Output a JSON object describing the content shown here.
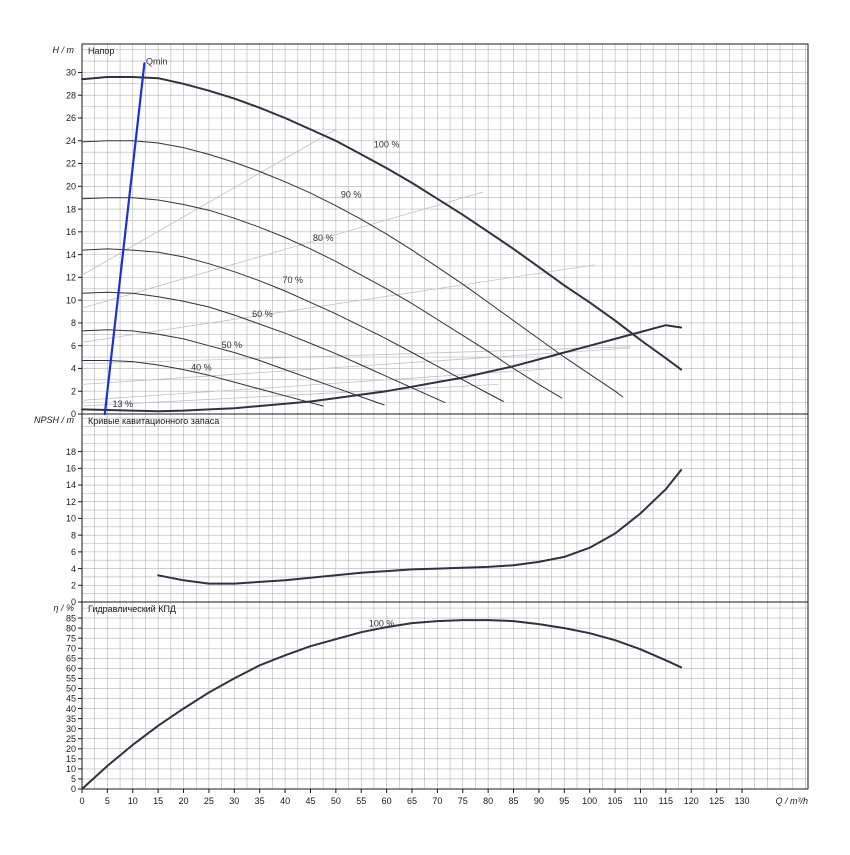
{
  "colors": {
    "grid": "#b4b4b4",
    "curve": "#2d3340",
    "qmin": "#1f2fd6",
    "eff_iso": "#c2c2c2",
    "frame": "#1a1a1a"
  },
  "x_axis": {
    "label": "Q / m³/h",
    "range": [
      0,
      143
    ],
    "grid_step": 2.5,
    "ticks": [
      0,
      5,
      10,
      15,
      20,
      25,
      30,
      35,
      40,
      45,
      50,
      55,
      60,
      65,
      70,
      75,
      80,
      85,
      90,
      95,
      100,
      105,
      110,
      115,
      120,
      125,
      130
    ]
  },
  "panels": [
    {
      "id": "head",
      "title": "Напор",
      "ylabel": "H / m",
      "ylim": [
        0,
        32.5
      ],
      "grid_step": 1,
      "ticks": [
        0,
        2,
        4,
        6,
        8,
        10,
        12,
        14,
        16,
        18,
        20,
        22,
        24,
        26,
        28,
        30
      ]
    },
    {
      "id": "npsh",
      "title": "Кривые кавитационного запаса",
      "ylabel": "NPSH / m",
      "ylim": [
        0,
        22.5
      ],
      "grid_step": 1,
      "ticks": [
        0,
        2,
        4,
        6,
        8,
        10,
        12,
        14,
        16,
        18
      ]
    },
    {
      "id": "eff",
      "title": "Гидравлический КПД",
      "ylabel": "η / %",
      "ylim": [
        0,
        93
      ],
      "grid_step": 5,
      "ticks": [
        0,
        5,
        10,
        15,
        20,
        25,
        30,
        35,
        40,
        45,
        50,
        55,
        60,
        65,
        70,
        75,
        80,
        85
      ]
    }
  ],
  "chart_data": [
    {
      "type": "line",
      "panel": "head",
      "title": "Напор",
      "ylabel": "H / m",
      "xlabel": "Q / m³/h",
      "xlim": [
        0,
        143
      ],
      "ylim": [
        0,
        32.5
      ],
      "grid": true,
      "series": [
        {
          "name": "100 %",
          "style": "main",
          "points": [
            [
              0,
              29.4
            ],
            [
              5,
              29.6
            ],
            [
              10,
              29.6
            ],
            [
              15,
              29.5
            ],
            [
              20,
              29.0
            ],
            [
              25,
              28.4
            ],
            [
              30,
              27.7
            ],
            [
              35,
              26.9
            ],
            [
              40,
              26.0
            ],
            [
              45,
              25.0
            ],
            [
              50,
              24.0
            ],
            [
              55,
              22.8
            ],
            [
              60,
              21.6
            ],
            [
              65,
              20.3
            ],
            [
              70,
              18.9
            ],
            [
              75,
              17.5
            ],
            [
              80,
              16.0
            ],
            [
              85,
              14.5
            ],
            [
              90,
              12.9
            ],
            [
              95,
              11.3
            ],
            [
              100,
              9.8
            ],
            [
              105,
              8.2
            ],
            [
              110,
              6.5
            ],
            [
              115,
              4.9
            ],
            [
              118,
              3.9
            ]
          ]
        },
        {
          "name": "90 %",
          "style": "thin",
          "points": [
            [
              0,
              23.9
            ],
            [
              5,
              24.0
            ],
            [
              10,
              24.0
            ],
            [
              15,
              23.8
            ],
            [
              20,
              23.4
            ],
            [
              25,
              22.8
            ],
            [
              30,
              22.1
            ],
            [
              35,
              21.3
            ],
            [
              40,
              20.4
            ],
            [
              45,
              19.4
            ],
            [
              50,
              18.3
            ],
            [
              55,
              17.1
            ],
            [
              60,
              15.8
            ],
            [
              65,
              14.4
            ],
            [
              70,
              12.9
            ],
            [
              75,
              11.4
            ],
            [
              80,
              9.8
            ],
            [
              85,
              8.2
            ],
            [
              90,
              6.6
            ],
            [
              95,
              5.0
            ],
            [
              100,
              3.5
            ],
            [
              105,
              2.0
            ],
            [
              106.5,
              1.5
            ]
          ]
        },
        {
          "name": "80 %",
          "style": "thin",
          "points": [
            [
              0,
              18.9
            ],
            [
              5,
              19.0
            ],
            [
              10,
              19.0
            ],
            [
              15,
              18.8
            ],
            [
              20,
              18.4
            ],
            [
              25,
              17.9
            ],
            [
              30,
              17.2
            ],
            [
              35,
              16.4
            ],
            [
              40,
              15.5
            ],
            [
              45,
              14.5
            ],
            [
              50,
              13.4
            ],
            [
              55,
              12.2
            ],
            [
              60,
              11.0
            ],
            [
              65,
              9.7
            ],
            [
              70,
              8.3
            ],
            [
              75,
              6.9
            ],
            [
              80,
              5.5
            ],
            [
              85,
              4.0
            ],
            [
              90,
              2.6
            ],
            [
              94.5,
              1.4
            ]
          ]
        },
        {
          "name": "70 %",
          "style": "thin",
          "points": [
            [
              0,
              14.4
            ],
            [
              5,
              14.5
            ],
            [
              10,
              14.4
            ],
            [
              15,
              14.2
            ],
            [
              20,
              13.8
            ],
            [
              25,
              13.2
            ],
            [
              30,
              12.5
            ],
            [
              35,
              11.7
            ],
            [
              40,
              10.8
            ],
            [
              45,
              9.8
            ],
            [
              50,
              8.8
            ],
            [
              55,
              7.7
            ],
            [
              60,
              6.6
            ],
            [
              65,
              5.4
            ],
            [
              70,
              4.2
            ],
            [
              75,
              3.0
            ],
            [
              80,
              1.8
            ],
            [
              83,
              1.1
            ]
          ]
        },
        {
          "name": "60 %",
          "style": "thin",
          "points": [
            [
              0,
              10.6
            ],
            [
              5,
              10.7
            ],
            [
              10,
              10.6
            ],
            [
              15,
              10.3
            ],
            [
              20,
              9.9
            ],
            [
              25,
              9.4
            ],
            [
              30,
              8.7
            ],
            [
              35,
              7.9
            ],
            [
              40,
              7.1
            ],
            [
              45,
              6.2
            ],
            [
              50,
              5.3
            ],
            [
              55,
              4.3
            ],
            [
              60,
              3.3
            ],
            [
              65,
              2.3
            ],
            [
              70,
              1.3
            ],
            [
              71.5,
              1.0
            ]
          ]
        },
        {
          "name": "50 %",
          "style": "thin",
          "points": [
            [
              0,
              7.3
            ],
            [
              5,
              7.4
            ],
            [
              10,
              7.3
            ],
            [
              15,
              7.0
            ],
            [
              20,
              6.6
            ],
            [
              25,
              6.0
            ],
            [
              30,
              5.4
            ],
            [
              35,
              4.7
            ],
            [
              40,
              3.9
            ],
            [
              45,
              3.1
            ],
            [
              50,
              2.3
            ],
            [
              55,
              1.5
            ],
            [
              59.5,
              0.8
            ]
          ]
        },
        {
          "name": "40 %",
          "style": "thin",
          "points": [
            [
              0,
              4.7
            ],
            [
              5,
              4.7
            ],
            [
              10,
              4.6
            ],
            [
              15,
              4.3
            ],
            [
              20,
              3.9
            ],
            [
              25,
              3.4
            ],
            [
              30,
              2.8
            ],
            [
              35,
              2.2
            ],
            [
              40,
              1.6
            ],
            [
              45,
              1.0
            ],
            [
              47.5,
              0.7
            ]
          ]
        },
        {
          "name": "13 %",
          "style": "main",
          "points": [
            [
              0,
              0.4
            ],
            [
              5,
              0.35
            ],
            [
              10,
              0.3
            ],
            [
              15,
              0.25
            ],
            [
              20,
              0.3
            ],
            [
              25,
              0.4
            ],
            [
              30,
              0.5
            ],
            [
              35,
              0.7
            ],
            [
              40,
              0.9
            ],
            [
              45,
              1.1
            ],
            [
              50,
              1.4
            ],
            [
              55,
              1.7
            ],
            [
              60,
              2.0
            ],
            [
              65,
              2.4
            ],
            [
              70,
              2.8
            ],
            [
              75,
              3.2
            ],
            [
              80,
              3.7
            ],
            [
              85,
              4.2
            ],
            [
              90,
              4.8
            ],
            [
              95,
              5.4
            ],
            [
              100,
              6.0
            ],
            [
              105,
              6.6
            ],
            [
              110,
              7.2
            ],
            [
              115,
              7.8
            ],
            [
              118,
              7.6
            ]
          ]
        },
        {
          "name": "Qmin",
          "style": "qmin",
          "points": [
            [
              4.5,
              0
            ],
            [
              12.3,
              30.8
            ]
          ]
        }
      ],
      "efficiency_isolines": [
        {
          "points": [
            [
              0,
              12.2
            ],
            [
              50,
              25.0
            ]
          ]
        },
        {
          "points": [
            [
              0,
              9.3
            ],
            [
              79,
              19.5
            ]
          ]
        },
        {
          "points": [
            [
              0,
              6.3
            ],
            [
              101,
              13.1
            ]
          ]
        },
        {
          "points": [
            [
              0,
              4.4
            ],
            [
              108,
              5.9
            ]
          ]
        },
        {
          "points": [
            [
              0,
              2.6
            ],
            [
              108,
              5.8
            ]
          ]
        },
        {
          "points": [
            [
              0,
              1.2
            ],
            [
              93,
              4.0
            ]
          ]
        },
        {
          "points": [
            [
              0,
              0.7
            ],
            [
              82,
              2.6
            ]
          ]
        }
      ],
      "annotations": [
        {
          "text": "Qmin",
          "x": 12.6,
          "y": 30.7
        },
        {
          "text": "100 %",
          "x": 57.5,
          "y": 23.4
        },
        {
          "text": "90 %",
          "x": 51,
          "y": 19.0
        },
        {
          "text": "80 %",
          "x": 45.5,
          "y": 15.2
        },
        {
          "text": "70 %",
          "x": 39.5,
          "y": 11.5
        },
        {
          "text": "60 %",
          "x": 33.5,
          "y": 8.5
        },
        {
          "text": "50 %",
          "x": 27.5,
          "y": 5.8
        },
        {
          "text": "40 %",
          "x": 21.5,
          "y": 3.8
        },
        {
          "text": "13 %",
          "x": 6,
          "y": 0.6
        }
      ]
    },
    {
      "type": "line",
      "panel": "npsh",
      "title": "Кривые кавитационного запаса",
      "ylabel": "NPSH / m",
      "xlabel": "Q / m³/h",
      "xlim": [
        0,
        143
      ],
      "ylim": [
        0,
        22.5
      ],
      "grid": true,
      "series": [
        {
          "name": "NPSH",
          "style": "main",
          "points": [
            [
              15,
              3.2
            ],
            [
              20,
              2.6
            ],
            [
              25,
              2.2
            ],
            [
              30,
              2.2
            ],
            [
              35,
              2.4
            ],
            [
              40,
              2.6
            ],
            [
              45,
              2.9
            ],
            [
              50,
              3.2
            ],
            [
              55,
              3.5
            ],
            [
              60,
              3.7
            ],
            [
              65,
              3.9
            ],
            [
              70,
              4.0
            ],
            [
              75,
              4.1
            ],
            [
              80,
              4.2
            ],
            [
              85,
              4.4
            ],
            [
              90,
              4.8
            ],
            [
              95,
              5.4
            ],
            [
              100,
              6.5
            ],
            [
              105,
              8.2
            ],
            [
              110,
              10.6
            ],
            [
              115,
              13.5
            ],
            [
              118,
              15.8
            ]
          ]
        }
      ],
      "annotations": []
    },
    {
      "type": "line",
      "panel": "eff",
      "title": "Гидравлический КПД",
      "ylabel": "η / %",
      "xlabel": "Q / m³/h",
      "xlim": [
        0,
        143
      ],
      "ylim": [
        0,
        93
      ],
      "grid": true,
      "series": [
        {
          "name": "100 %",
          "style": "main",
          "points": [
            [
              0,
              0
            ],
            [
              5,
              11.5
            ],
            [
              10,
              22.0
            ],
            [
              15,
              31.5
            ],
            [
              20,
              40.0
            ],
            [
              25,
              48.0
            ],
            [
              30,
              55.0
            ],
            [
              35,
              61.5
            ],
            [
              40,
              66.5
            ],
            [
              45,
              71.0
            ],
            [
              50,
              74.5
            ],
            [
              55,
              78.0
            ],
            [
              60,
              80.5
            ],
            [
              65,
              82.5
            ],
            [
              70,
              83.5
            ],
            [
              75,
              84.0
            ],
            [
              80,
              84.0
            ],
            [
              85,
              83.5
            ],
            [
              90,
              82.0
            ],
            [
              95,
              80.0
            ],
            [
              100,
              77.5
            ],
            [
              105,
              74.0
            ],
            [
              110,
              69.5
            ],
            [
              115,
              64.0
            ],
            [
              118,
              60.5
            ]
          ]
        }
      ],
      "annotations": [
        {
          "text": "100 %",
          "x": 56.5,
          "y": 80.8
        }
      ]
    }
  ]
}
